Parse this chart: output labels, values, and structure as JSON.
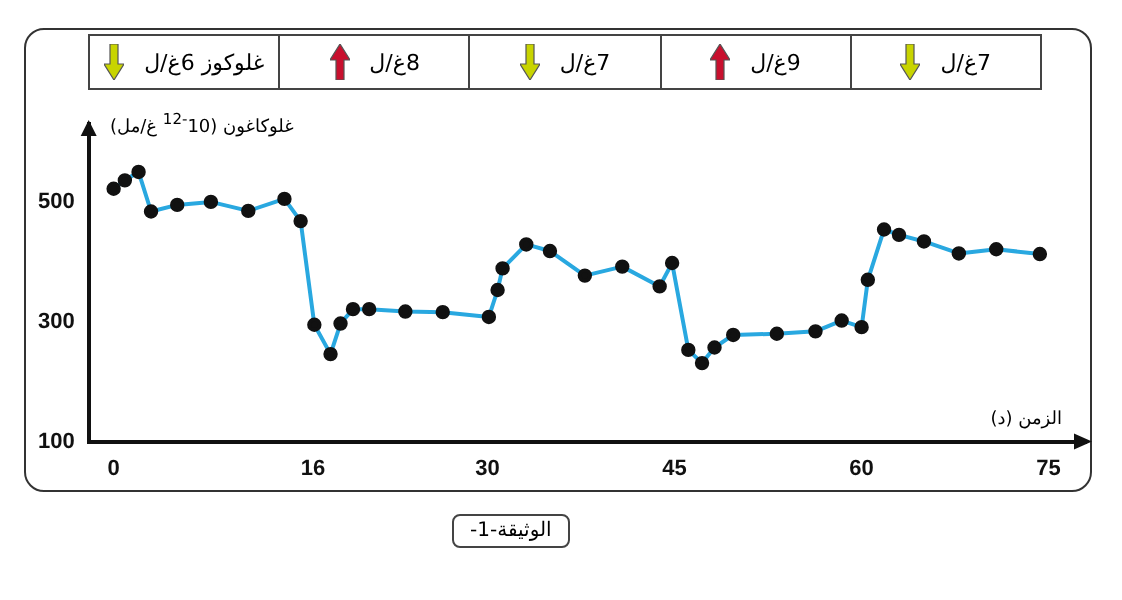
{
  "chart_data": {
    "type": "line",
    "xlabel": "الزمن (د)",
    "ylabel": "غلوكاغون (10$^{-12}$ غ/مل)",
    "x": [
      0,
      0.9,
      2,
      3,
      5.1,
      7.8,
      10.8,
      13.7,
      15,
      16.1,
      17.4,
      18.2,
      19.2,
      20.5,
      23.4,
      26.4,
      30.1,
      30.8,
      31.2,
      33.1,
      35,
      37.8,
      40.8,
      43.8,
      44.8,
      46.1,
      47.2,
      48.2,
      49.7,
      53.2,
      56.3,
      58.4,
      60,
      60.5,
      61.8,
      63,
      65,
      67.8,
      70.8,
      74.3
    ],
    "series": [
      {
        "color": "#29a8e0",
        "values": [
          522,
          536,
          550,
          484,
          495,
          500,
          485,
          505,
          468,
          295,
          246,
          297,
          321,
          321,
          317,
          316,
          308,
          353,
          389,
          429,
          418,
          377,
          392,
          359,
          398,
          253,
          231,
          257,
          278,
          280,
          284,
          302,
          291,
          370,
          454,
          445,
          434,
          414,
          421,
          413
        ]
      }
    ],
    "xlim": [
      -2,
      78
    ],
    "ylim": [
      100,
      630
    ],
    "xticks": [
      0,
      16,
      30,
      45,
      60,
      75
    ],
    "yticks": [
      100,
      300,
      500
    ],
    "grid": false,
    "legend": false,
    "marker": "circle",
    "line_style": "solid",
    "annotations": [
      "غلوكوز 6غ/ل",
      "8غ/ل",
      "7غ/ل",
      "9غ/ل",
      "7غ/ل",
      "الوثيقة-1-"
    ]
  }
}
